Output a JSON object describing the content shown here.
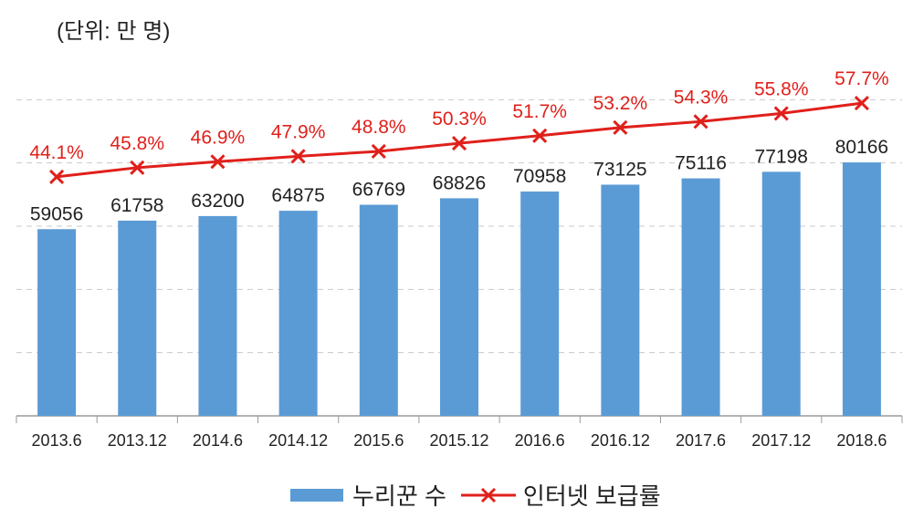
{
  "unit_label": "(단위: 만 명)",
  "colors": {
    "bar": "#5b9bd5",
    "line": "#e0201b",
    "grid": "#c9c9c9",
    "axis": "#9a9a9a",
    "text": "#222222"
  },
  "legend": {
    "bar_label": "누리꾼 수",
    "line_label": "인터넷 보급률"
  },
  "chart_data": {
    "type": "bar",
    "title": "",
    "xlabel": "",
    "ylabel": "",
    "categories": [
      "2013.6",
      "2013.12",
      "2014.6",
      "2014.12",
      "2015.6",
      "2015.12",
      "2016.6",
      "2016.12",
      "2017.6",
      "2017.12",
      "2018.6"
    ],
    "series": [
      {
        "name": "누리꾼 수",
        "type": "bar",
        "values": [
          59056,
          61758,
          63200,
          64875,
          66769,
          68826,
          70958,
          73125,
          75116,
          77198,
          80166
        ]
      },
      {
        "name": "인터넷 보급률",
        "type": "line",
        "values": [
          44.1,
          45.8,
          46.9,
          47.9,
          48.8,
          50.3,
          51.7,
          53.2,
          54.3,
          55.8,
          57.7
        ],
        "labels": [
          "44.1%",
          "45.8%",
          "46.9%",
          "47.9%",
          "48.8%",
          "50.3%",
          "51.7%",
          "53.2%",
          "54.3%",
          "55.8%",
          "57.7%"
        ]
      }
    ],
    "ylim": [
      0,
      120000
    ],
    "y2lim": [
      0,
      70
    ],
    "grid": true,
    "legend_position": "bottom"
  }
}
